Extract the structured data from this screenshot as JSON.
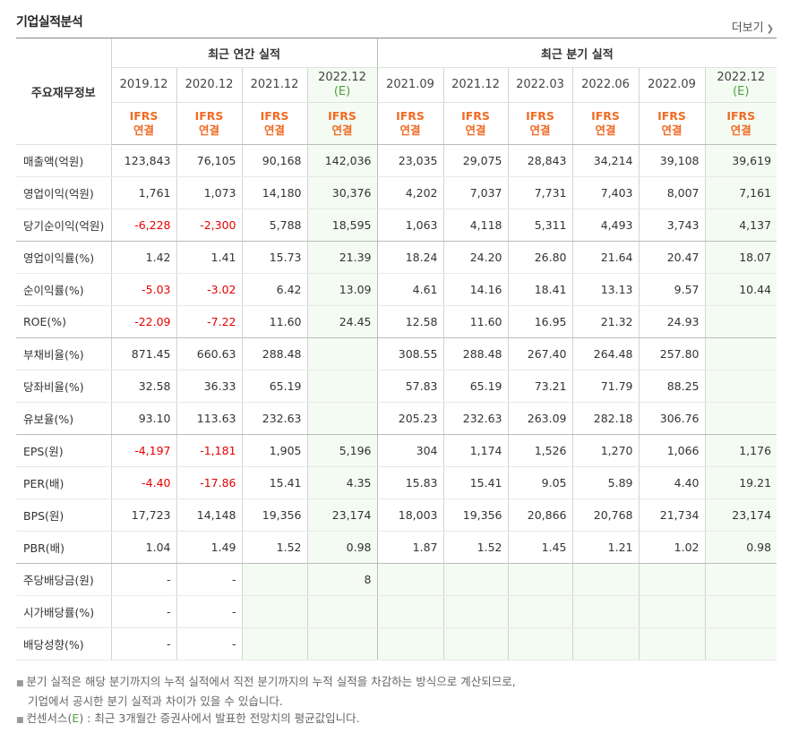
{
  "header": {
    "title": "기업실적분석",
    "more_label": "더보기"
  },
  "groups": {
    "annual": "최근 연간 실적",
    "quarterly": "최근 분기 실적"
  },
  "corner_label": "주요재무정보",
  "periods": [
    {
      "date": "2019.12",
      "est": "",
      "std": "IFRS",
      "basis": "연결"
    },
    {
      "date": "2020.12",
      "est": "",
      "std": "IFRS",
      "basis": "연결"
    },
    {
      "date": "2021.12",
      "est": "",
      "std": "IFRS",
      "basis": "연결"
    },
    {
      "date": "2022.12",
      "est": "(E)",
      "std": "IFRS",
      "basis": "연결"
    },
    {
      "date": "2021.09",
      "est": "",
      "std": "IFRS",
      "basis": "연결"
    },
    {
      "date": "2021.12",
      "est": "",
      "std": "IFRS",
      "basis": "연결"
    },
    {
      "date": "2022.03",
      "est": "",
      "std": "IFRS",
      "basis": "연결"
    },
    {
      "date": "2022.06",
      "est": "",
      "std": "IFRS",
      "basis": "연결"
    },
    {
      "date": "2022.09",
      "est": "",
      "std": "IFRS",
      "basis": "연결"
    },
    {
      "date": "2022.12",
      "est": "(E)",
      "std": "IFRS",
      "basis": "연결"
    }
  ],
  "rows": [
    {
      "label": "매출액(억원)",
      "values": [
        "123,843",
        "76,105",
        "90,168",
        "142,036",
        "23,035",
        "29,075",
        "28,843",
        "34,214",
        "39,108",
        "39,619"
      ]
    },
    {
      "label": "영업이익(억원)",
      "values": [
        "1,761",
        "1,073",
        "14,180",
        "30,376",
        "4,202",
        "7,037",
        "7,731",
        "7,403",
        "8,007",
        "7,161"
      ]
    },
    {
      "label": "당기순이익(억원)",
      "values": [
        "-6,228",
        "-2,300",
        "5,788",
        "18,595",
        "1,063",
        "4,118",
        "5,311",
        "4,493",
        "3,743",
        "4,137"
      ]
    },
    {
      "label": "영업이익률(%)",
      "values": [
        "1.42",
        "1.41",
        "15.73",
        "21.39",
        "18.24",
        "24.20",
        "26.80",
        "21.64",
        "20.47",
        "18.07"
      ]
    },
    {
      "label": "순이익률(%)",
      "values": [
        "-5.03",
        "-3.02",
        "6.42",
        "13.09",
        "4.61",
        "14.16",
        "18.41",
        "13.13",
        "9.57",
        "10.44"
      ]
    },
    {
      "label": "ROE(%)",
      "values": [
        "-22.09",
        "-7.22",
        "11.60",
        "24.45",
        "12.58",
        "11.60",
        "16.95",
        "21.32",
        "24.93",
        ""
      ]
    },
    {
      "label": "부채비율(%)",
      "values": [
        "871.45",
        "660.63",
        "288.48",
        "",
        "308.55",
        "288.48",
        "267.40",
        "264.48",
        "257.80",
        ""
      ]
    },
    {
      "label": "당좌비율(%)",
      "values": [
        "32.58",
        "36.33",
        "65.19",
        "",
        "57.83",
        "65.19",
        "73.21",
        "71.79",
        "88.25",
        ""
      ]
    },
    {
      "label": "유보율(%)",
      "values": [
        "93.10",
        "113.63",
        "232.63",
        "",
        "205.23",
        "232.63",
        "263.09",
        "282.18",
        "306.76",
        ""
      ]
    },
    {
      "label": "EPS(원)",
      "values": [
        "-4,197",
        "-1,181",
        "1,905",
        "5,196",
        "304",
        "1,174",
        "1,526",
        "1,270",
        "1,066",
        "1,176"
      ]
    },
    {
      "label": "PER(배)",
      "values": [
        "-4.40",
        "-17.86",
        "15.41",
        "4.35",
        "15.83",
        "15.41",
        "9.05",
        "5.89",
        "4.40",
        "19.21"
      ]
    },
    {
      "label": "BPS(원)",
      "values": [
        "17,723",
        "14,148",
        "19,356",
        "23,174",
        "18,003",
        "19,356",
        "20,866",
        "20,768",
        "21,734",
        "23,174"
      ]
    },
    {
      "label": "PBR(배)",
      "values": [
        "1.04",
        "1.49",
        "1.52",
        "0.98",
        "1.87",
        "1.52",
        "1.45",
        "1.21",
        "1.02",
        "0.98"
      ]
    },
    {
      "label": "주당배당금(원)",
      "values": [
        "-",
        "-",
        "",
        "8",
        "",
        "",
        "",
        "",
        "",
        ""
      ]
    },
    {
      "label": "시가배당률(%)",
      "values": [
        "-",
        "-",
        "",
        "",
        "",
        "",
        "",
        "",
        "",
        ""
      ]
    },
    {
      "label": "배당성향(%)",
      "values": [
        "-",
        "-",
        "",
        "",
        "",
        "",
        "",
        "",
        "",
        ""
      ]
    }
  ],
  "group_breaks": [
    2,
    5,
    8,
    12
  ],
  "notes": {
    "line1": "분기 실적은 해당 분기까지의 누적 실적에서 직전 분기까지의 누적 실적을 차감하는 방식으로 계산되므로,",
    "line2": "기업에서 공시한 분기 실적과 차이가 있을 수 있습니다.",
    "line3_pre": "컨센서스(",
    "line3_em": "E",
    "line3_post": ") : 최근 3개월간 증권사에서 발표한 전망치의 평균값입니다."
  },
  "colors": {
    "negative": "#e60000",
    "ifrs": "#f06b24",
    "estimate_bg": "#f4fbf2",
    "estimate_text": "#4fa142"
  }
}
